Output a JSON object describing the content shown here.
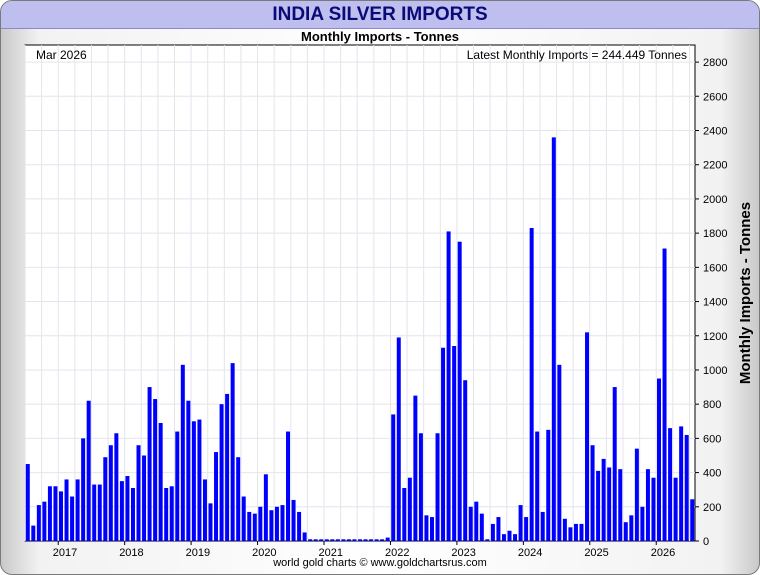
{
  "header": {
    "title": "INDIA SILVER IMPORTS",
    "subtitle": "Monthly Imports - Tonnes"
  },
  "annotations": {
    "date": "Mar 2026",
    "latest": "Latest Monthly Imports = 244.449 Tonnes"
  },
  "footer": {
    "credit": "world gold charts © www.goldchartsrus.com"
  },
  "colors": {
    "bar": "#0000ff",
    "title_bg": "#bebeef",
    "title_text": "#0b0b77",
    "grid": "#e4e4ec"
  },
  "chart_data": {
    "type": "bar",
    "title": "INDIA SILVER IMPORTS",
    "subtitle": "Monthly Imports - Tonnes",
    "xlabel": "",
    "ylabel": "Monthly Imports - Tonnes",
    "ylim": [
      0,
      2900
    ],
    "yticks": [
      0,
      200,
      400,
      600,
      800,
      1000,
      1200,
      1400,
      1600,
      1800,
      2000,
      2200,
      2400,
      2600,
      2800
    ],
    "x_tick_labels": [
      "2017",
      "2018",
      "2019",
      "2020",
      "2021",
      "2022",
      "2023",
      "2024",
      "2025",
      "2026"
    ],
    "grid": true,
    "series": [
      {
        "values": [
          450,
          90,
          210,
          230,
          320,
          320,
          290,
          360,
          260,
          360,
          600,
          820,
          330,
          330,
          490,
          560,
          630,
          350,
          380,
          310,
          560,
          500,
          900,
          830,
          690,
          310,
          320,
          640,
          1030,
          820,
          700,
          710,
          360,
          220,
          520,
          800,
          860,
          1040,
          490,
          260,
          170,
          160,
          200,
          390,
          180,
          200,
          210,
          640,
          240,
          170,
          50,
          10,
          10,
          10,
          10,
          10,
          10,
          10,
          10,
          10,
          10,
          10,
          10,
          10,
          10,
          20,
          740,
          1190,
          310,
          370,
          850,
          630,
          150,
          140,
          630,
          1130,
          1810,
          1140,
          1750,
          940,
          200,
          230,
          160,
          10,
          100,
          140,
          40,
          60,
          40,
          210,
          140,
          1830,
          640,
          170,
          650,
          2360,
          1030,
          130,
          80,
          100,
          100,
          1220,
          560,
          410,
          480,
          430,
          900,
          420,
          110,
          150,
          540,
          200,
          420,
          370,
          950,
          1710,
          660,
          370,
          670,
          620,
          244
        ]
      }
    ]
  }
}
